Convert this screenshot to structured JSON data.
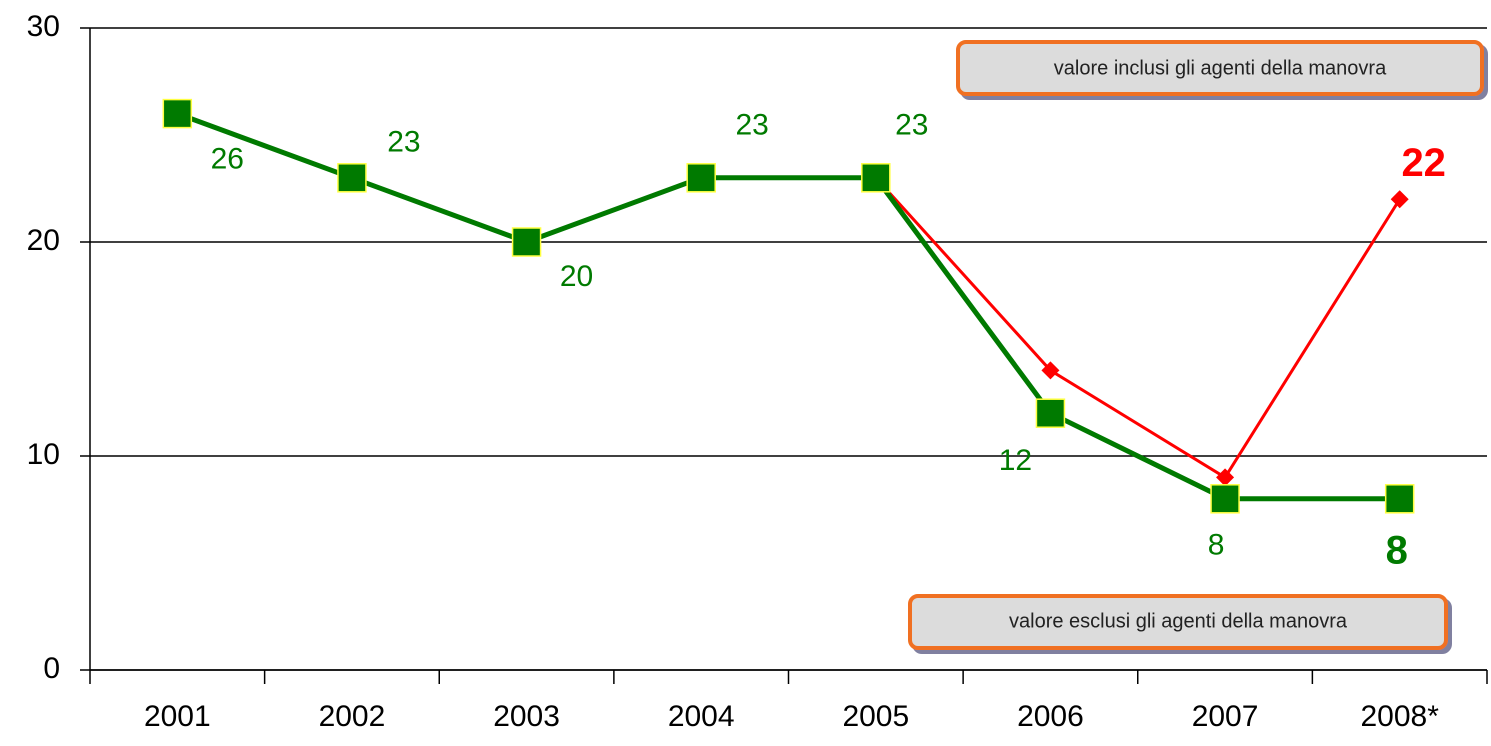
{
  "chart_data": {
    "type": "line",
    "categories": [
      "2001",
      "2002",
      "2003",
      "2004",
      "2005",
      "2006",
      "2007",
      "2008*"
    ],
    "series": [
      {
        "color": "#007a00",
        "values": [
          26,
          23,
          20,
          23,
          23,
          12,
          8,
          8
        ]
      },
      {
        "color": "#ff0000",
        "values": [
          null,
          null,
          null,
          null,
          23,
          14,
          9,
          22
        ],
        "value_labels": [
          null,
          null,
          null,
          null,
          null,
          null,
          null,
          "22"
        ]
      }
    ],
    "ylim": [
      0,
      30
    ],
    "yticks": [
      0,
      10,
      20,
      30
    ],
    "grid": true,
    "annotations": [
      "valore inclusi gli agenti della manovra",
      "valore esclusi gli agenti della manovra"
    ]
  }
}
